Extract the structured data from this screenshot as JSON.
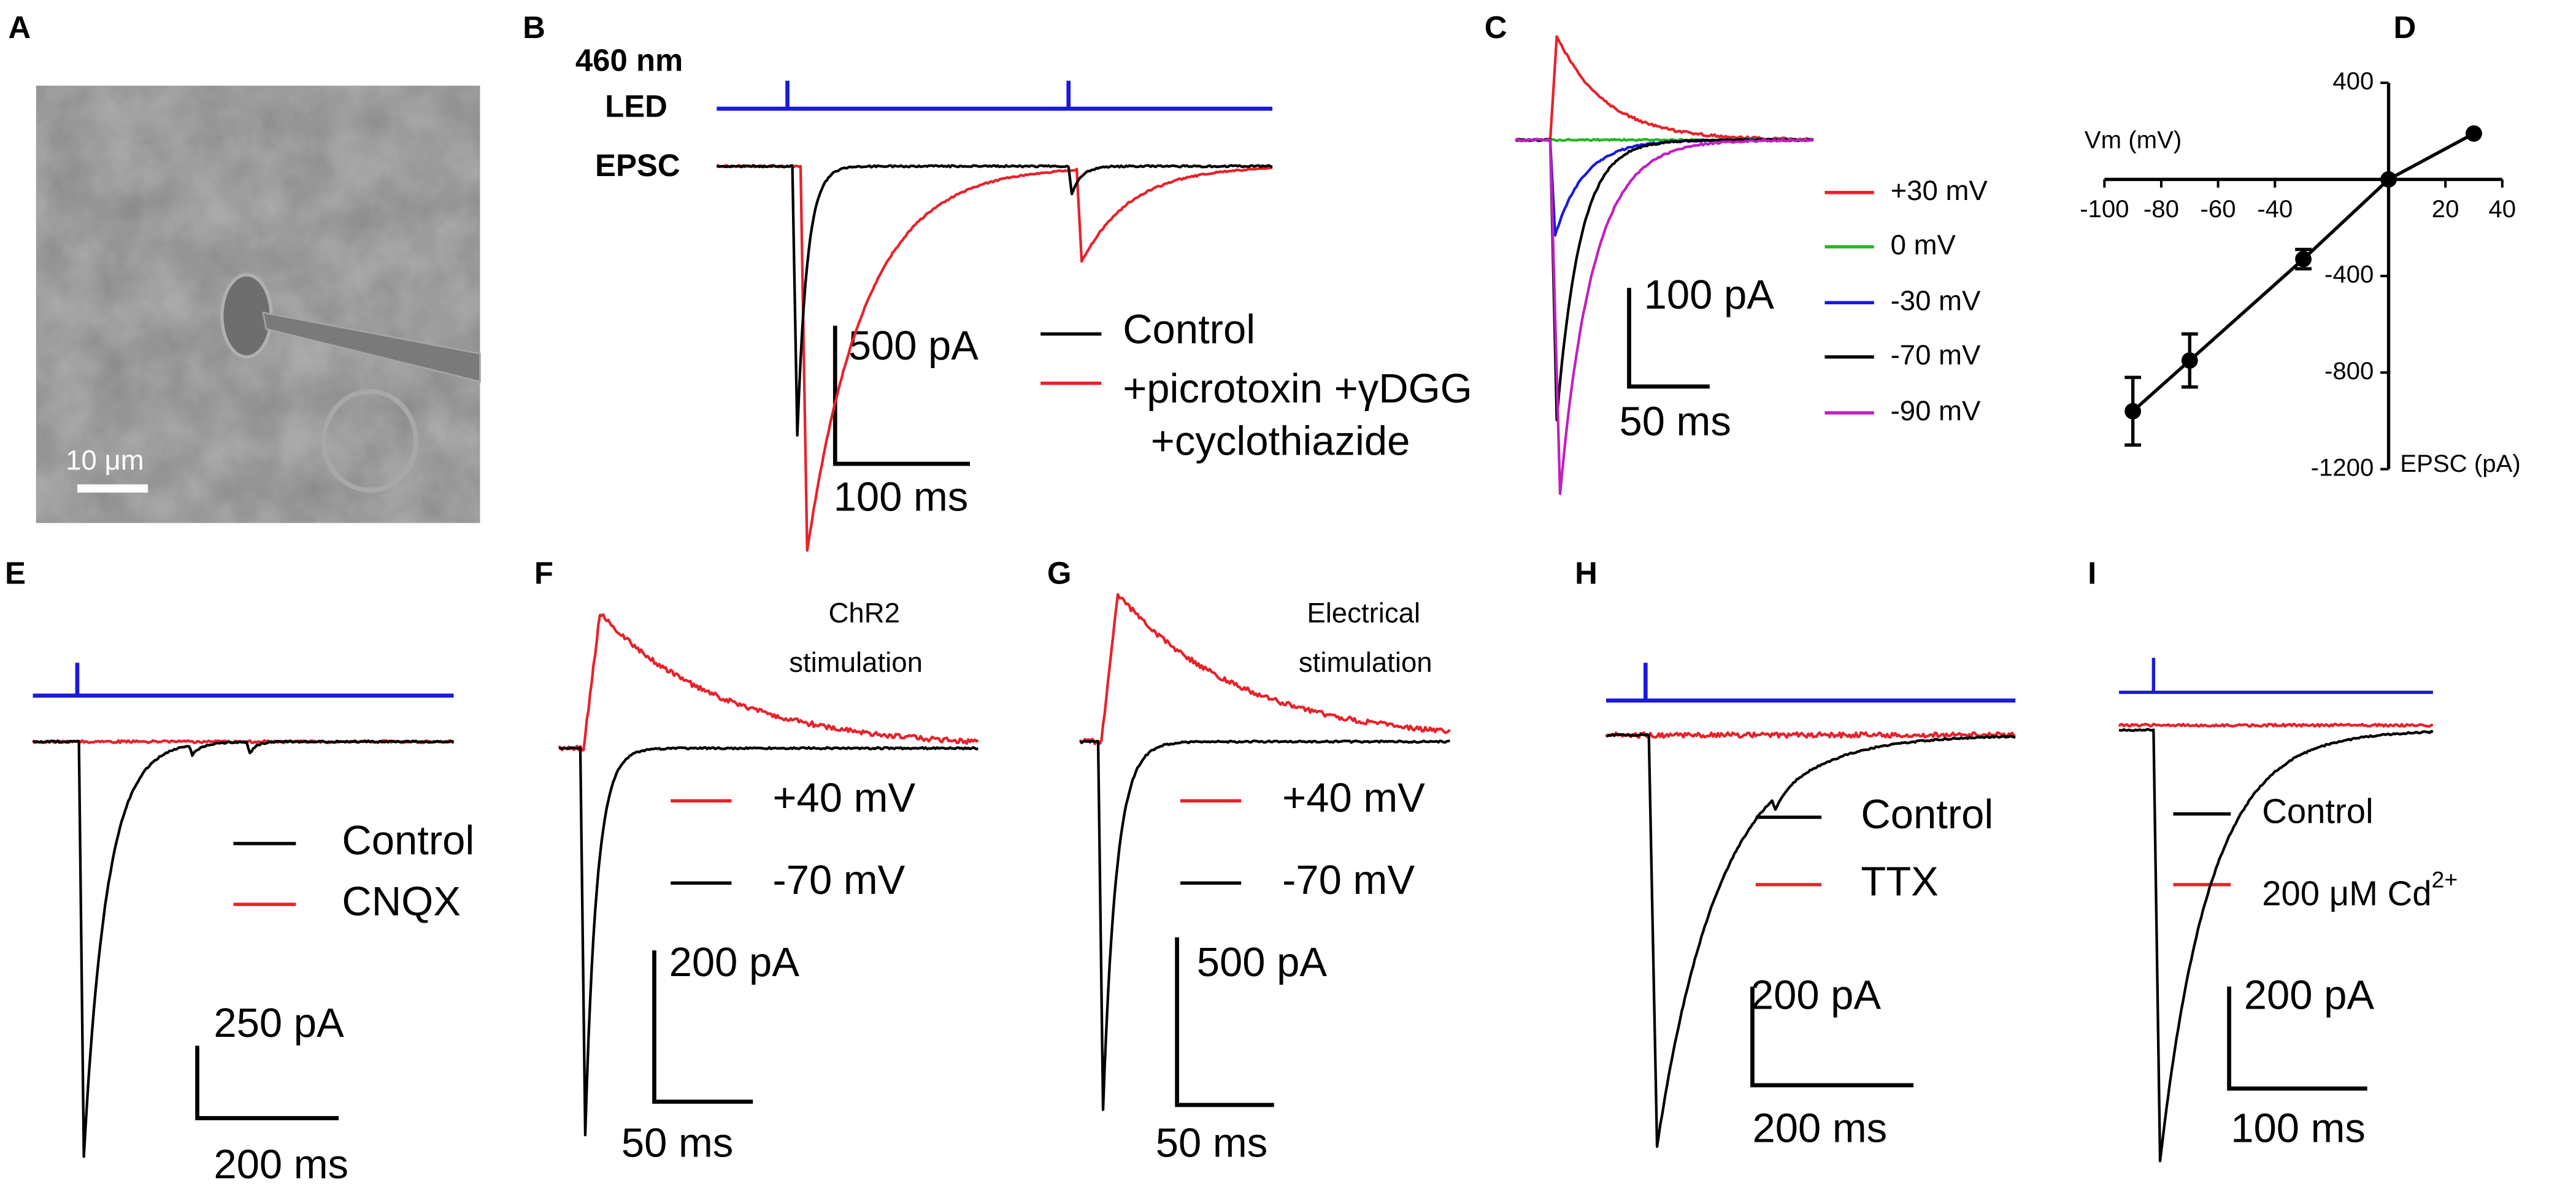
{
  "panels": {
    "A": {
      "letter": "A",
      "scale_bar": "10 μm"
    },
    "B": {
      "letter": "B",
      "stim": "460 nm",
      "led": "LED",
      "epsc": "EPSC",
      "scale_y": "500 pA",
      "scale_x": "100 ms",
      "legend": [
        "Control",
        "+picrotoxin +γDGG"
      ],
      "legend_cont": "+cyclothiazide"
    },
    "C": {
      "letter": "C",
      "scale_y": "100 pA",
      "scale_x": "50 ms",
      "legend": [
        "+30 mV",
        "0 mV",
        "-30 mV",
        "-70 mV",
        "-90 mV"
      ]
    },
    "D": {
      "letter": "D"
    },
    "E": {
      "letter": "E",
      "legend": [
        "Control",
        "CNQX"
      ],
      "scale_y": "250 pA",
      "scale_x": "200 ms"
    },
    "F": {
      "letter": "F",
      "note": [
        "ChR2",
        "stimulation"
      ],
      "legend": [
        "+40 mV",
        "-70 mV"
      ],
      "scale_y": "200 pA",
      "scale_x": "50 ms"
    },
    "G": {
      "letter": "G",
      "note": [
        "Electrical",
        "stimulation"
      ],
      "legend": [
        "+40 mV",
        "-70 mV"
      ],
      "scale_y": "500 pA",
      "scale_x": "50 ms"
    },
    "H": {
      "letter": "H",
      "legend": [
        "Control",
        "TTX"
      ],
      "scale_y": "200 pA",
      "scale_x": "200 ms"
    },
    "I": {
      "letter": "I",
      "legend": [
        "Control",
        "200 μM Cd"
      ],
      "legend_superscript": "2+",
      "scale_y": "200 pA",
      "scale_x": "100 ms"
    }
  },
  "chart_data": {
    "type": "scatter",
    "xlabel": "Vm (mV)",
    "ylabel": "EPSC (pA)",
    "x": [
      -90,
      -70,
      -30,
      0,
      30
    ],
    "values": [
      -960,
      -750,
      -330,
      0,
      190
    ],
    "errors": [
      140,
      110,
      40,
      0,
      0
    ],
    "color": "#000000",
    "xlim": [
      -100,
      40
    ],
    "xticks": [
      -100,
      -80,
      -60,
      -40,
      20,
      40
    ],
    "ylim": [
      -1200,
      400
    ],
    "yticks": [
      400,
      -400,
      -800,
      -1200
    ]
  }
}
